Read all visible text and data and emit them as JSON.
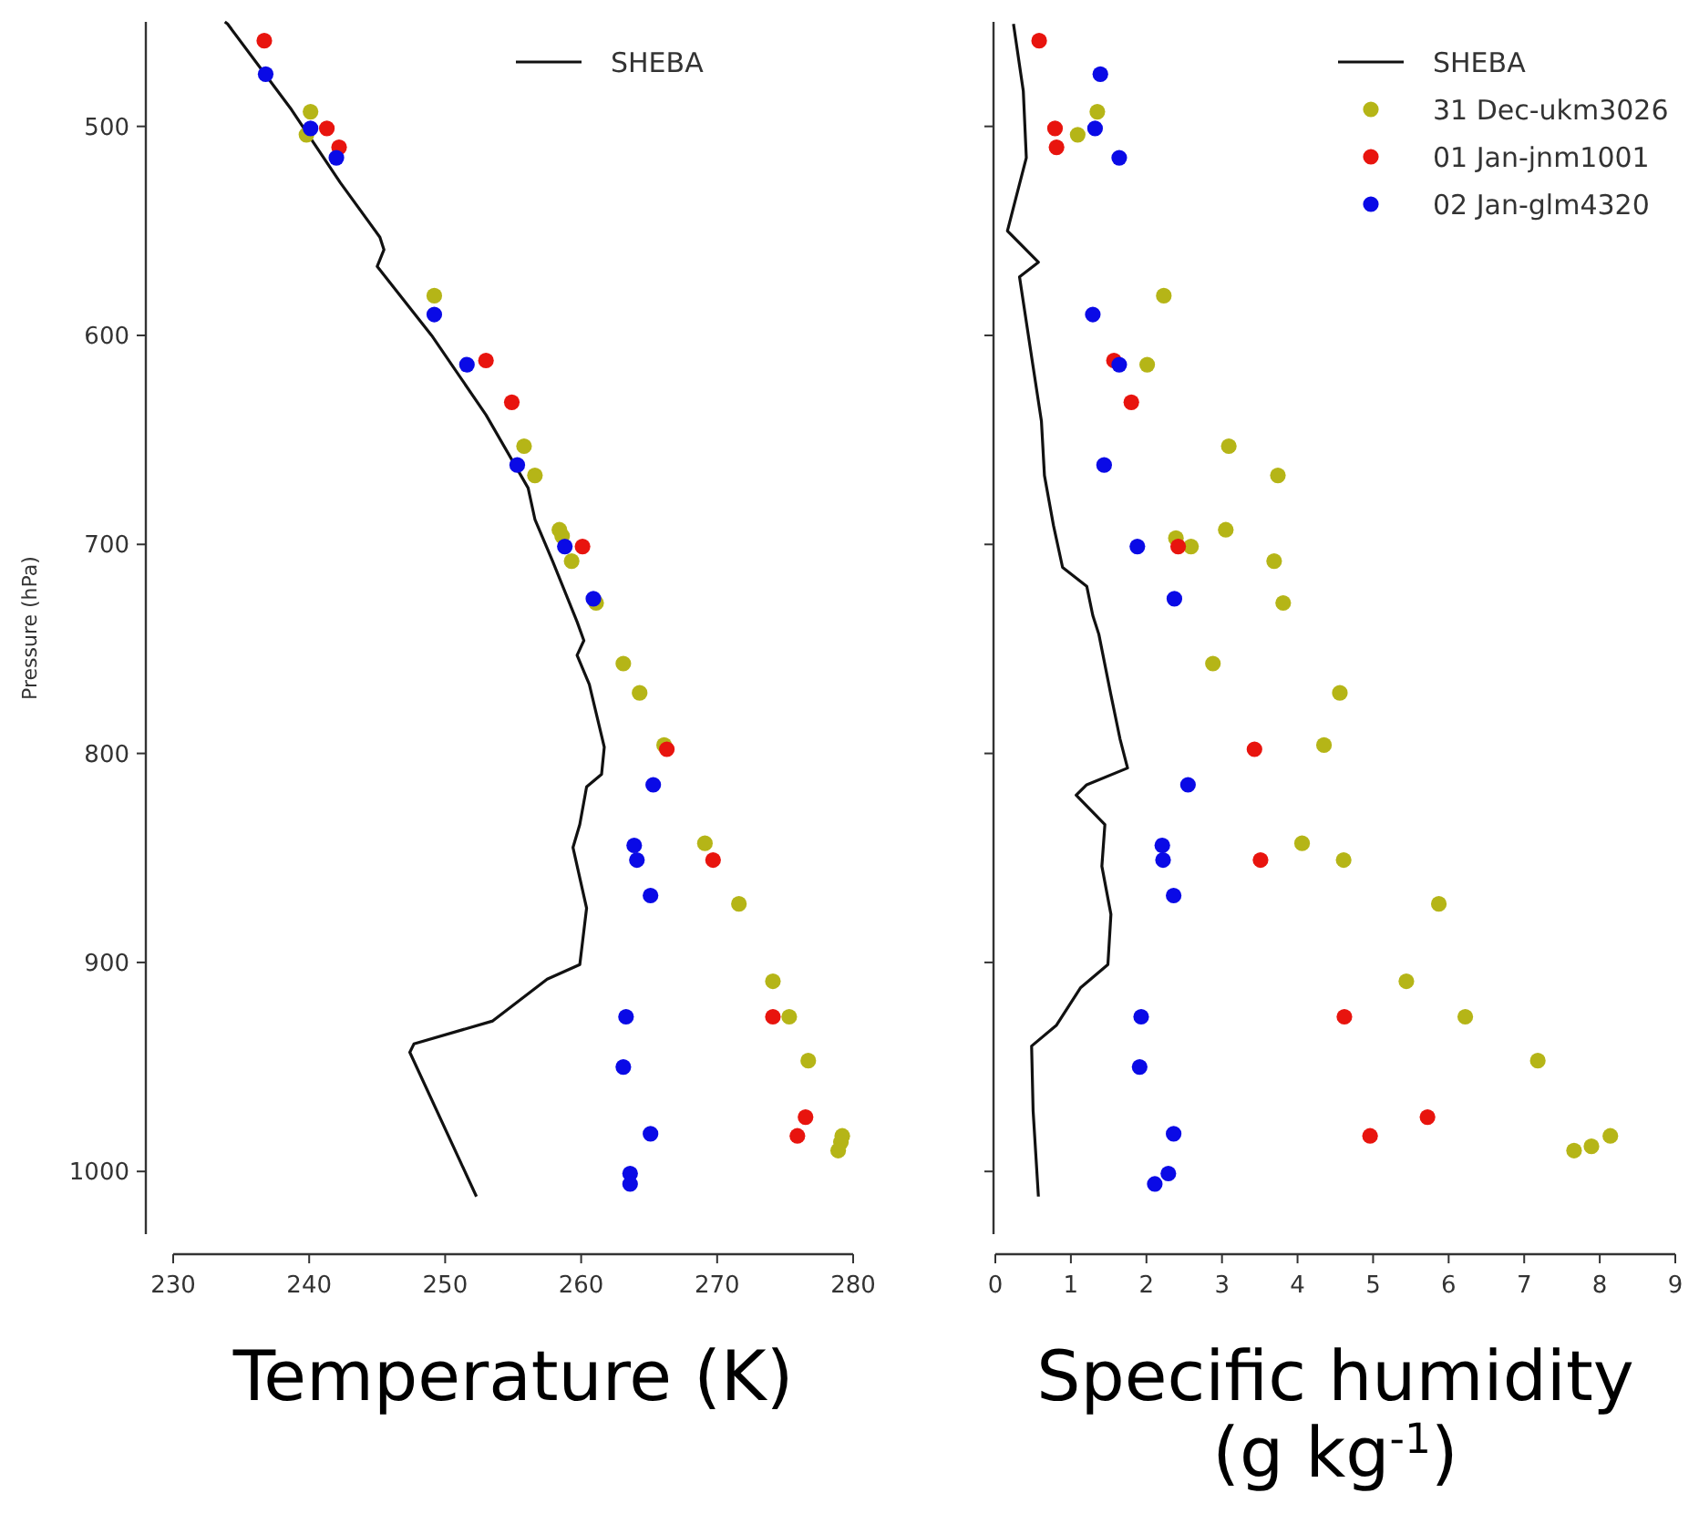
{
  "chart_data": [
    {
      "type": "scatter",
      "xlabel": "Temperature (K)",
      "ylabel": "Pressure (hPa)",
      "xlim": [
        230,
        280
      ],
      "xticks": [
        230,
        240,
        250,
        260,
        270,
        280
      ],
      "ylim": [
        1030,
        450
      ],
      "yticks": [
        500,
        600,
        700,
        800,
        900,
        1000
      ],
      "legend": "top right",
      "grid": false,
      "marker": "circle",
      "series": [
        {
          "name": "SHEBA",
          "type": "line",
          "marker": "none",
          "color": "#111111",
          "line_style": "solid",
          "x": [
            233.8,
            234.0,
            238.7,
            242.3,
            245.2,
            245.5,
            245.0,
            249.0,
            253.0,
            256.1,
            256.6,
            257.9,
            259.7,
            260.2,
            259.7,
            260.6,
            261.7,
            261.5,
            260.4,
            259.9,
            259.4,
            260.4,
            259.9,
            257.5,
            253.5,
            247.7,
            247.4,
            252.3
          ],
          "values": [
            450,
            451,
            492,
            527,
            553,
            559,
            567,
            600,
            638,
            673,
            688,
            708,
            737,
            746,
            753,
            767,
            797,
            810,
            816,
            834,
            845,
            874,
            901,
            908,
            928,
            939,
            943,
            1012
          ]
        },
        {
          "color": "#b5b517",
          "x": [
            240.1,
            239.8,
            249.2,
            255.8,
            256.6,
            258.4,
            258.6,
            259.3,
            261.1,
            263.1,
            264.3,
            266.1,
            269.1,
            271.6,
            274.1,
            275.3,
            276.7,
            279.2,
            279.1,
            278.9
          ],
          "values": [
            493,
            504,
            581,
            653,
            667,
            693,
            696,
            708,
            728,
            757,
            771,
            796,
            843,
            872,
            909,
            926,
            947,
            983,
            986,
            990
          ]
        },
        {
          "color": "#e8140e",
          "x": [
            236.7,
            241.3,
            242.2,
            253.0,
            254.9,
            260.1,
            266.3,
            269.7,
            274.1,
            276.5,
            275.9
          ],
          "values": [
            459,
            501,
            510,
            612,
            632,
            701,
            798,
            851,
            926,
            974,
            983
          ]
        },
        {
          "color": "#0a0ae6",
          "x": [
            236.8,
            240.1,
            242.0,
            249.2,
            251.6,
            255.3,
            258.8,
            260.9,
            265.3,
            263.9,
            264.1,
            265.1,
            263.3,
            263.1,
            265.1,
            263.6,
            263.6
          ],
          "values": [
            475,
            501,
            515,
            590,
            614,
            662,
            701,
            726,
            815,
            844,
            851,
            868,
            926,
            950,
            982,
            1001,
            1006
          ]
        }
      ]
    },
    {
      "type": "scatter",
      "xlabel": "Specific humidity (g kg$^{-1}$)",
      "xlim": [
        0,
        9
      ],
      "xticks": [
        0,
        1,
        2,
        3,
        4,
        5,
        6,
        7,
        8,
        9
      ],
      "ylim": [
        1030,
        450
      ],
      "yticks": [
        500,
        600,
        700,
        800,
        900,
        1000
      ],
      "tick_labels": "x",
      "legend": "top right",
      "grid": false,
      "marker": "circle",
      "series": [
        {
          "name": "SHEBA",
          "type": "line",
          "marker": "none",
          "color": "#111111",
          "line_style": "solid",
          "x": [
            0.24,
            0.37,
            0.41,
            0.26,
            0.16,
            0.57,
            0.32,
            0.5,
            0.61,
            0.65,
            0.77,
            0.89,
            1.21,
            1.29,
            1.37,
            1.53,
            1.65,
            1.75,
            1.21,
            1.07,
            1.45,
            1.41,
            1.53,
            1.49,
            1.13,
            0.81,
            0.48,
            0.5,
            0.57
          ],
          "values": [
            451,
            483,
            515,
            536,
            550,
            565,
            572,
            615,
            641,
            667,
            691,
            711,
            720,
            734,
            743,
            772,
            793,
            807,
            815,
            820,
            834,
            854,
            877,
            901,
            912,
            930,
            940,
            971,
            1012
          ]
        },
        {
          "name": "31 Dec-ukm3026",
          "color": "#b5b517",
          "x": [
            1.35,
            1.09,
            2.23,
            2.01,
            3.09,
            3.74,
            3.05,
            2.39,
            2.59,
            3.69,
            3.81,
            2.88,
            4.56,
            4.35,
            4.06,
            4.61,
            5.87,
            5.44,
            6.22,
            7.18,
            8.14,
            7.89,
            7.66
          ],
          "values": [
            493,
            504,
            581,
            614,
            653,
            667,
            693,
            697,
            701,
            708,
            728,
            757,
            771,
            796,
            843,
            851,
            872,
            909,
            926,
            947,
            983,
            988,
            990
          ]
        },
        {
          "name": "01 Jan-jnm1001",
          "color": "#e8140e",
          "x": [
            0.58,
            0.79,
            0.81,
            1.57,
            1.8,
            2.42,
            3.43,
            3.51,
            4.62,
            5.72,
            4.96
          ],
          "values": [
            459,
            501,
            510,
            612,
            632,
            701,
            798,
            851,
            926,
            974,
            983
          ]
        },
        {
          "name": "02 Jan-glm4320",
          "color": "#0a0ae6",
          "x": [
            1.39,
            1.32,
            1.64,
            1.29,
            1.64,
            1.44,
            1.88,
            2.37,
            2.55,
            2.21,
            2.22,
            2.36,
            1.93,
            1.91,
            2.36,
            2.29,
            2.11
          ],
          "values": [
            475,
            501,
            515,
            590,
            614,
            662,
            701,
            726,
            815,
            844,
            851,
            868,
            926,
            950,
            982,
            1001,
            1006
          ]
        }
      ]
    }
  ]
}
